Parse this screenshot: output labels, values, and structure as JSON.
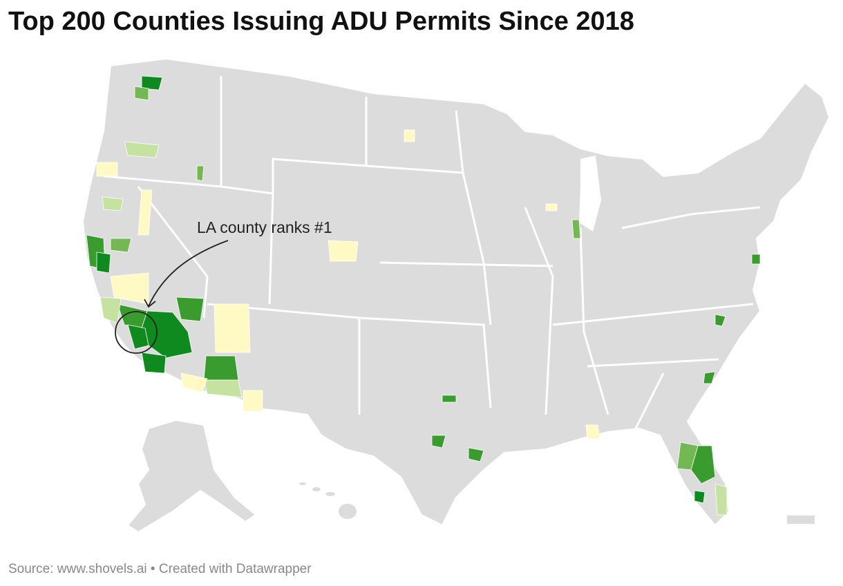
{
  "title": "Top 200 Counties Issuing ADU Permits Since 2018",
  "annotation": "LA county ranks #1",
  "footer": "Source: www.shovels.ai • Created with Datawrapper"
}
